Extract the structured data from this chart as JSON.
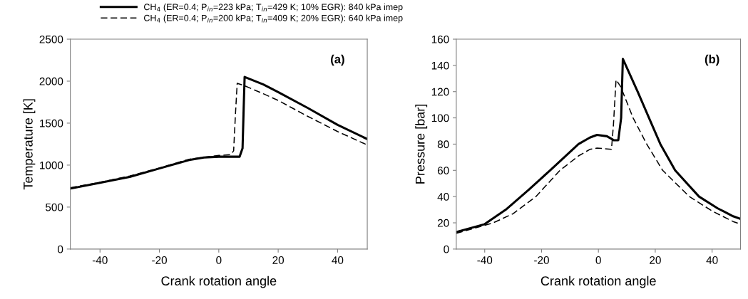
{
  "chart_data": [
    {
      "type": "line",
      "xlabel": "Crank rotation angle",
      "ylabel": "Temperature [K]",
      "xlim": [
        -50,
        50
      ],
      "xticks": [
        -40,
        -20,
        0,
        20,
        40
      ],
      "ylim": [
        0,
        2500
      ],
      "yticks": [
        0,
        500,
        1000,
        1500,
        2000,
        2500
      ],
      "legend": "top",
      "annotations": [
        "(a)"
      ],
      "series": [
        {
          "name": "CH$_{4}$ (ER=0.4; P$_{in}$=223 kPa; T$_{in}$=429 K; 10% EGR): 840 kPa imep",
          "color": "#000000",
          "line_style": "solid",
          "x": [
            -50,
            -40,
            -30,
            -20,
            -10,
            -5,
            0,
            7,
            8,
            8.4,
            8.7,
            15,
            20,
            30,
            40,
            50
          ],
          "values": [
            720,
            790,
            860,
            960,
            1060,
            1090,
            1100,
            1100,
            1200,
            1700,
            2050,
            1960,
            1870,
            1680,
            1480,
            1310
          ]
        },
        {
          "name": "CH$_{4}$ (ER=0.4; P$_{in}$=200 kPa; T$_{in}$=409 K; 20% EGR): 640 kPa imep",
          "color": "#000000",
          "line_style": "dashed",
          "x": [
            -50,
            -40,
            -30,
            -20,
            -10,
            0,
            4,
            5,
            5.6,
            6.2,
            9,
            15,
            20,
            30,
            40,
            50
          ],
          "values": [
            730,
            795,
            870,
            965,
            1070,
            1115,
            1125,
            1170,
            1600,
            1975,
            1940,
            1850,
            1770,
            1580,
            1400,
            1240
          ]
        }
      ]
    },
    {
      "type": "line",
      "xlabel": "Crank rotation angle",
      "ylabel": "Pressure [bar]",
      "xlim": [
        -50,
        50
      ],
      "xticks": [
        -40,
        -20,
        0,
        20,
        40
      ],
      "ylim": [
        0,
        160
      ],
      "yticks": [
        0,
        20,
        40,
        60,
        80,
        100,
        120,
        140,
        160
      ],
      "annotations": [
        "(b)"
      ],
      "series": [
        {
          "color": "#000000",
          "line_style": "solid",
          "x": [
            -50,
            -40,
            -32.6,
            -24.6,
            -17,
            -12,
            -7,
            -3,
            -0.5,
            3,
            5.4,
            7,
            8,
            8.6,
            13.8,
            17.8,
            21.8,
            27,
            35.4,
            42,
            47.4,
            50
          ],
          "values": [
            13,
            19,
            30,
            45,
            60,
            70,
            80,
            85,
            87,
            86,
            83,
            83,
            100,
            145,
            120,
            100,
            80,
            60,
            40,
            31,
            25,
            23
          ]
        },
        {
          "color": "#000000",
          "line_style": "dashed",
          "x": [
            -50,
            -37,
            -30,
            -22,
            -13.5,
            -7,
            -3,
            -0.5,
            4.6,
            5.3,
            6.2,
            7.8,
            12.2,
            17,
            22.6,
            32,
            40,
            47.4,
            50
          ],
          "values": [
            12,
            20,
            27,
            40,
            60,
            71,
            76,
            77,
            76,
            95,
            129,
            124,
            100,
            80,
            60,
            40,
            29,
            21,
            19
          ]
        }
      ]
    }
  ]
}
